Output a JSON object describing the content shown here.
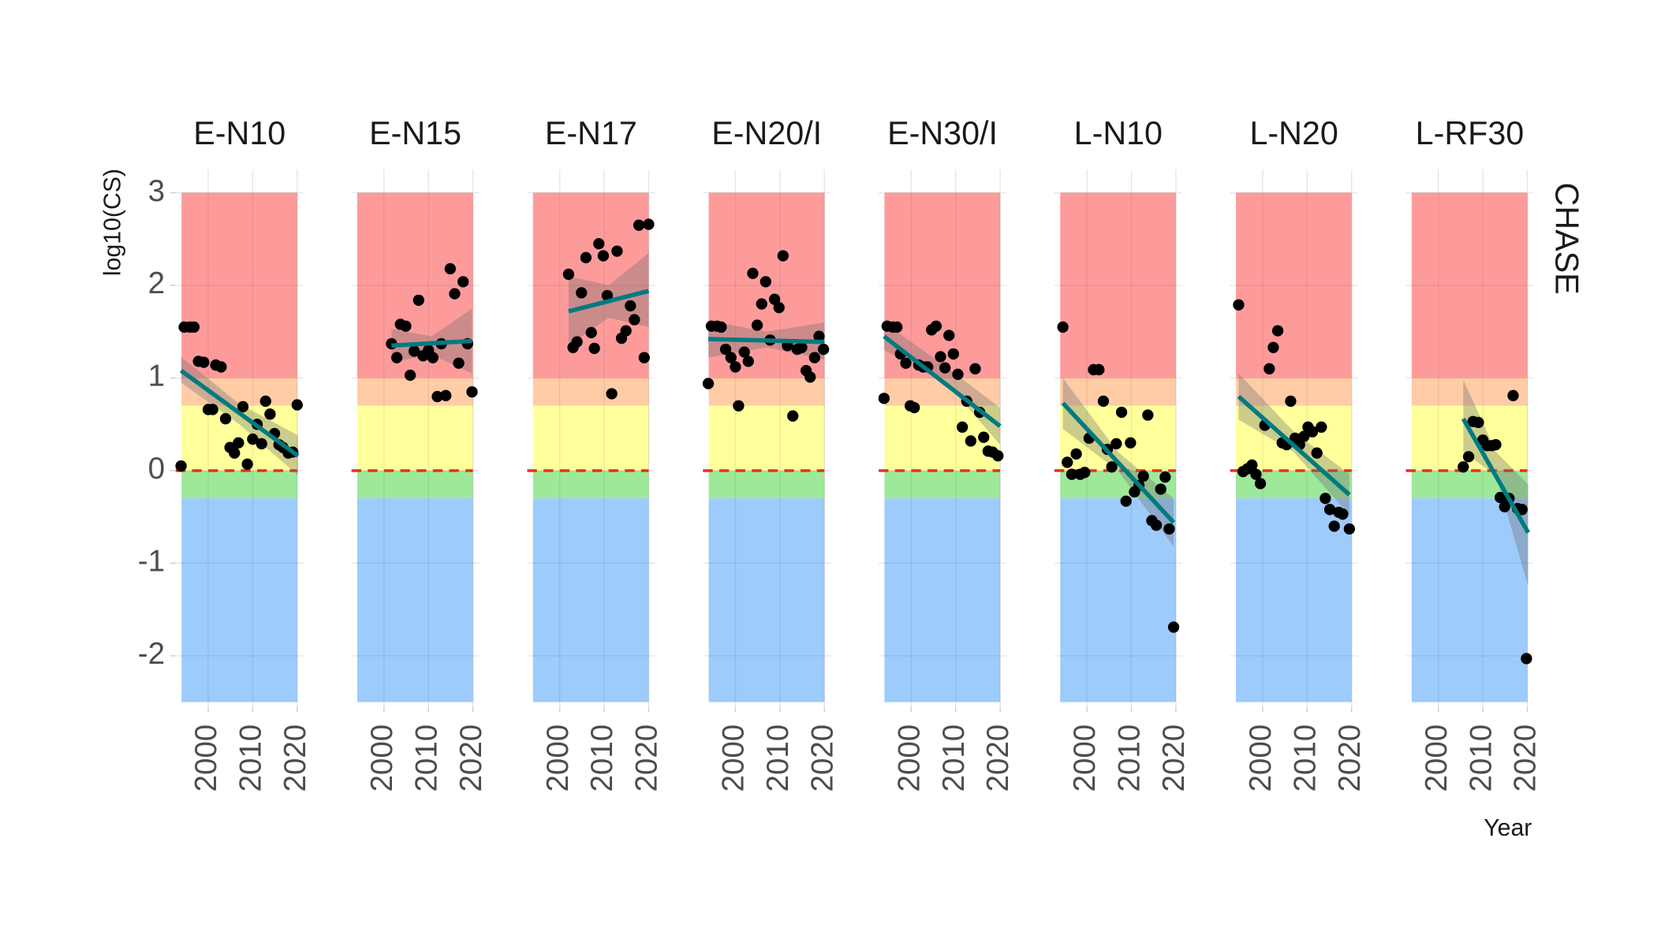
{
  "chart_data": {
    "type": "scatter",
    "y_label": "log10(CS)",
    "x_label": "Year",
    "row_label": "CHASE",
    "ylim": [
      -2.55,
      3.25
    ],
    "yticks": [
      -2,
      -1,
      0,
      1,
      2,
      3
    ],
    "xlim": [
      1992.7,
      2021.4
    ],
    "xticks": [
      2000,
      2010,
      2020
    ],
    "zone_x": [
      1994,
      2020
    ],
    "zones": [
      {
        "from": 1,
        "to": 3,
        "color": "#fd9b9b"
      },
      {
        "from": 0.7,
        "to": 1,
        "color": "#ffcca6"
      },
      {
        "from": 0,
        "to": 0.7,
        "color": "#ffff9c"
      },
      {
        "from": -0.3,
        "to": 0,
        "color": "#9ee89a"
      },
      {
        "from": -2.5,
        "to": -0.3,
        "color": "#9dcbfb"
      }
    ],
    "reference_line": 0,
    "reference_color": "#e8301c",
    "trend_color": "#007b80",
    "point_color": "#000000",
    "panels": [
      {
        "title": "E-N10",
        "x": [
          1993.9,
          1994.6,
          1995.9,
          1996.8,
          1997.8,
          1999,
          2000,
          2001,
          2001.7,
          2002.9,
          2003.9,
          2004.9,
          2005.9,
          2006.8,
          2007.8,
          2008.8,
          2010,
          2011,
          2012,
          2012.9,
          2013.9,
          2014.9,
          2015.9,
          2016.8,
          2018,
          2019,
          2020
        ],
        "values": [
          0.05,
          1.55,
          1.55,
          1.55,
          1.18,
          1.17,
          0.66,
          0.66,
          1.14,
          1.12,
          0.56,
          0.25,
          0.19,
          0.3,
          0.69,
          0.07,
          0.34,
          0.5,
          0.29,
          0.75,
          0.61,
          0.4,
          0.28,
          0.25,
          0.19,
          0.2,
          0.71
        ],
        "trend": {
          "x": [
            1993.9,
            2020.2
          ],
          "values": [
            1.08,
            0.16
          ]
        },
        "ribbon": {
          "x": [
            1993.9,
            2007,
            2020.2
          ],
          "lower": [
            0.95,
            0.5,
            -0.05
          ],
          "upper": [
            1.23,
            0.72,
            0.38
          ]
        }
      },
      {
        "title": "E-N15",
        "x": [
          2001.7,
          2002.9,
          2003.7,
          2004.9,
          2005.9,
          2006.8,
          2007.8,
          2008.8,
          2010,
          2011,
          2012,
          2012.9,
          2013.9,
          2014.9,
          2015.9,
          2016.8,
          2017.8,
          2018.8,
          2019.8
        ],
        "values": [
          1.37,
          1.22,
          1.58,
          1.56,
          1.03,
          1.29,
          1.84,
          1.24,
          1.3,
          1.22,
          0.8,
          1.37,
          0.81,
          2.18,
          1.91,
          1.16,
          2.04,
          1.37,
          0.85
        ],
        "trend": {
          "x": [
            2001.7,
            2019.8
          ],
          "values": [
            1.35,
            1.4
          ]
        },
        "ribbon": {
          "x": [
            2001.7,
            2010.7,
            2019.8
          ],
          "lower": [
            1.17,
            1.25,
            1.05
          ],
          "upper": [
            1.53,
            1.45,
            1.75
          ]
        }
      },
      {
        "title": "E-N17",
        "x": [
          2002,
          2003,
          2003.9,
          2004.9,
          2005.9,
          2007.1,
          2007.8,
          2008.8,
          2009.8,
          2010.7,
          2011.7,
          2012.9,
          2013.9,
          2014.9,
          2015.9,
          2016.8,
          2017.8,
          2019,
          2020
        ],
        "values": [
          2.12,
          1.33,
          1.39,
          1.92,
          2.3,
          1.49,
          1.32,
          2.45,
          2.32,
          1.89,
          0.83,
          2.37,
          1.43,
          1.51,
          1.78,
          1.63,
          2.65,
          1.22,
          2.66
        ],
        "trend": {
          "x": [
            2002,
            2020
          ],
          "values": [
            1.72,
            1.94
          ]
        },
        "ribbon": {
          "x": [
            2002,
            2011,
            2020
          ],
          "lower": [
            1.35,
            1.65,
            1.55
          ],
          "upper": [
            2.1,
            2.0,
            2.35
          ]
        }
      },
      {
        "title": "E-N20/I",
        "x": [
          1993.9,
          1994.6,
          1995.9,
          1996.8,
          1997.8,
          1999,
          2000,
          2000.7,
          2002,
          2002.9,
          2003.9,
          2004.9,
          2005.9,
          2006.8,
          2007.8,
          2008.8,
          2009.8,
          2010.7,
          2011.7,
          2012.9,
          2013.9,
          2014.9,
          2015.9,
          2016.8,
          2017.8,
          2018.8,
          2019.8
        ],
        "values": [
          0.94,
          1.56,
          1.56,
          1.55,
          1.31,
          1.22,
          1.12,
          0.7,
          1.28,
          1.18,
          2.13,
          1.57,
          1.8,
          2.04,
          1.41,
          1.85,
          1.76,
          2.32,
          1.35,
          0.59,
          1.31,
          1.33,
          1.08,
          1.01,
          1.22,
          1.45,
          1.31
        ],
        "trend": {
          "x": [
            1993.9,
            2020
          ],
          "values": [
            1.42,
            1.39
          ]
        },
        "ribbon": {
          "x": [
            1993.9,
            2007,
            2020
          ],
          "lower": [
            1.22,
            1.33,
            1.2
          ],
          "upper": [
            1.62,
            1.5,
            1.6
          ]
        }
      },
      {
        "title": "E-N30/I",
        "x": [
          1993.9,
          1994.6,
          1995.9,
          1996.8,
          1997.6,
          1998.8,
          1999.8,
          2000.7,
          2001.7,
          2002.7,
          2003.7,
          2004.6,
          2005.6,
          2006.6,
          2007.6,
          2008.5,
          2009.5,
          2010.5,
          2011.5,
          2012.5,
          2013.4,
          2014.4,
          2015.4,
          2016.3,
          2017.3,
          2018.3,
          2019.5
        ],
        "values": [
          0.78,
          1.56,
          1.55,
          1.55,
          1.26,
          1.16,
          0.7,
          0.68,
          1.14,
          1.12,
          1.12,
          1.52,
          1.56,
          1.23,
          1.11,
          1.46,
          1.26,
          1.04,
          0.47,
          0.75,
          0.32,
          1.1,
          0.63,
          0.36,
          0.21,
          0.2,
          0.16
        ],
        "trend": {
          "x": [
            1993.9,
            2020
          ],
          "values": [
            1.45,
            0.48
          ]
        },
        "ribbon": {
          "x": [
            1993.9,
            2007,
            2020
          ],
          "lower": [
            1.3,
            1.0,
            0.28
          ],
          "upper": [
            1.6,
            1.15,
            0.68
          ]
        }
      },
      {
        "title": "L-N10",
        "x": [
          1994.6,
          1995.6,
          1996.6,
          1997.6,
          1998.5,
          1999.5,
          2000.5,
          2001.5,
          2002.7,
          2003.7,
          2004.6,
          2005.6,
          2006.6,
          2007.8,
          2008.8,
          2009.8,
          2010.7,
          2011.7,
          2012.7,
          2013.7,
          2014.6,
          2015.6,
          2016.6,
          2017.6,
          2018.5,
          2019.5
        ],
        "values": [
          1.55,
          0.09,
          -0.04,
          0.18,
          -0.04,
          -0.02,
          0.35,
          1.09,
          1.09,
          0.75,
          0.23,
          0.04,
          0.29,
          0.63,
          -0.33,
          0.3,
          -0.23,
          -0.16,
          -0.06,
          0.6,
          -0.54,
          -0.59,
          -0.2,
          -0.07,
          -0.63,
          -1.69
        ],
        "trend": {
          "x": [
            1994.6,
            2019.5
          ],
          "values": [
            0.73,
            -0.56
          ]
        },
        "ribbon": {
          "x": [
            1994.6,
            2007,
            2019.5
          ],
          "lower": [
            0.45,
            0.0,
            -0.82
          ],
          "upper": [
            1.0,
            0.2,
            -0.3
          ]
        }
      },
      {
        "title": "L-N20",
        "x": [
          1994.6,
          1995.6,
          1996.6,
          1997.6,
          1998.5,
          1999.5,
          2000.5,
          2001.5,
          2002.4,
          2003.4,
          2004.4,
          2005.4,
          2006.3,
          2007.3,
          2008.3,
          2009.3,
          2010.2,
          2011.2,
          2012.2,
          2013.2,
          2014.1,
          2015.1,
          2016.1,
          2017.1,
          2018,
          2019.5
        ],
        "values": [
          1.79,
          -0.01,
          0.02,
          0.06,
          -0.04,
          -0.14,
          0.49,
          1.1,
          1.33,
          1.51,
          0.3,
          0.28,
          0.75,
          0.35,
          0.28,
          0.37,
          0.47,
          0.42,
          0.19,
          0.47,
          -0.3,
          -0.42,
          -0.6,
          -0.45,
          -0.47,
          -0.63
        ],
        "trend": {
          "x": [
            1994.6,
            2019.5
          ],
          "values": [
            0.8,
            -0.26
          ]
        },
        "ribbon": {
          "x": [
            1994.6,
            2007,
            2019.5
          ],
          "lower": [
            0.55,
            0.2,
            -0.48
          ],
          "upper": [
            1.05,
            0.42,
            -0.04
          ]
        }
      },
      {
        "title": "L-RF30",
        "x": [
          2005.6,
          2006.8,
          2007.8,
          2009,
          2010,
          2011,
          2012,
          2012.9,
          2013.9,
          2014.9,
          2015.9,
          2016.8,
          2017.8,
          2018.8,
          2019.8
        ],
        "values": [
          0.04,
          0.15,
          0.53,
          0.52,
          0.33,
          0.27,
          0.27,
          0.28,
          -0.29,
          -0.39,
          -0.3,
          0.81,
          -0.41,
          -0.42,
          -2.03
        ],
        "trend": {
          "x": [
            2005.6,
            2020.2
          ],
          "values": [
            0.56,
            -0.67
          ]
        },
        "ribbon": {
          "x": [
            2005.6,
            2013,
            2020.2
          ],
          "lower": [
            0.2,
            -0.05,
            -1.25
          ],
          "upper": [
            0.98,
            0.2,
            -0.15
          ]
        }
      }
    ]
  }
}
